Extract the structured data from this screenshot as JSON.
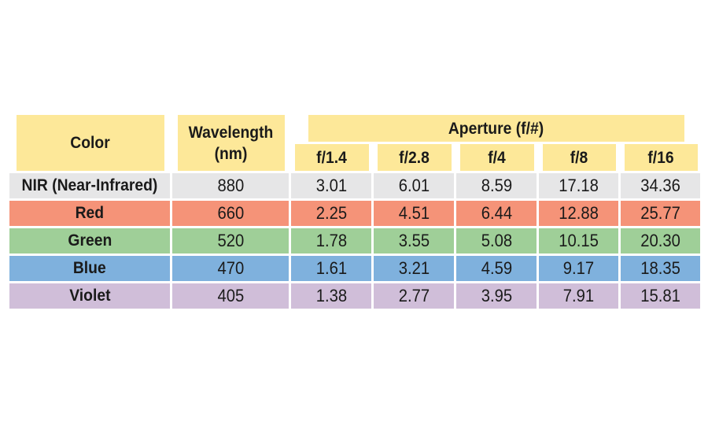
{
  "table": {
    "headers": {
      "color": "Color",
      "wavelength_line1": "Wavelength",
      "wavelength_line2": "(nm)",
      "aperture": "Aperture (f/#)",
      "apertures": [
        "f/1.4",
        "f/2.8",
        "f/4",
        "f/8",
        "f/16"
      ]
    },
    "rows": [
      {
        "color": "NIR (Near-Infrared)",
        "wavelength": "880",
        "values": [
          "3.01",
          "6.01",
          "8.59",
          "17.18",
          "34.36"
        ],
        "bg": "#e6e6e7"
      },
      {
        "color": "Red",
        "wavelength": "660",
        "values": [
          "2.25",
          "4.51",
          "6.44",
          "12.88",
          "25.77"
        ],
        "bg": "#f59378"
      },
      {
        "color": "Green",
        "wavelength": "520",
        "values": [
          "1.78",
          "3.55",
          "5.08",
          "10.15",
          "20.30"
        ],
        "bg": "#9fcf98"
      },
      {
        "color": "Blue",
        "wavelength": "470",
        "values": [
          "1.61",
          "3.21",
          "4.59",
          "9.17",
          "18.35"
        ],
        "bg": "#7fb1dd"
      },
      {
        "color": "Violet",
        "wavelength": "405",
        "values": [
          "1.38",
          "2.77",
          "3.95",
          "7.91",
          "15.81"
        ],
        "bg": "#d0bed9"
      }
    ],
    "header_bg": "#fde899"
  }
}
